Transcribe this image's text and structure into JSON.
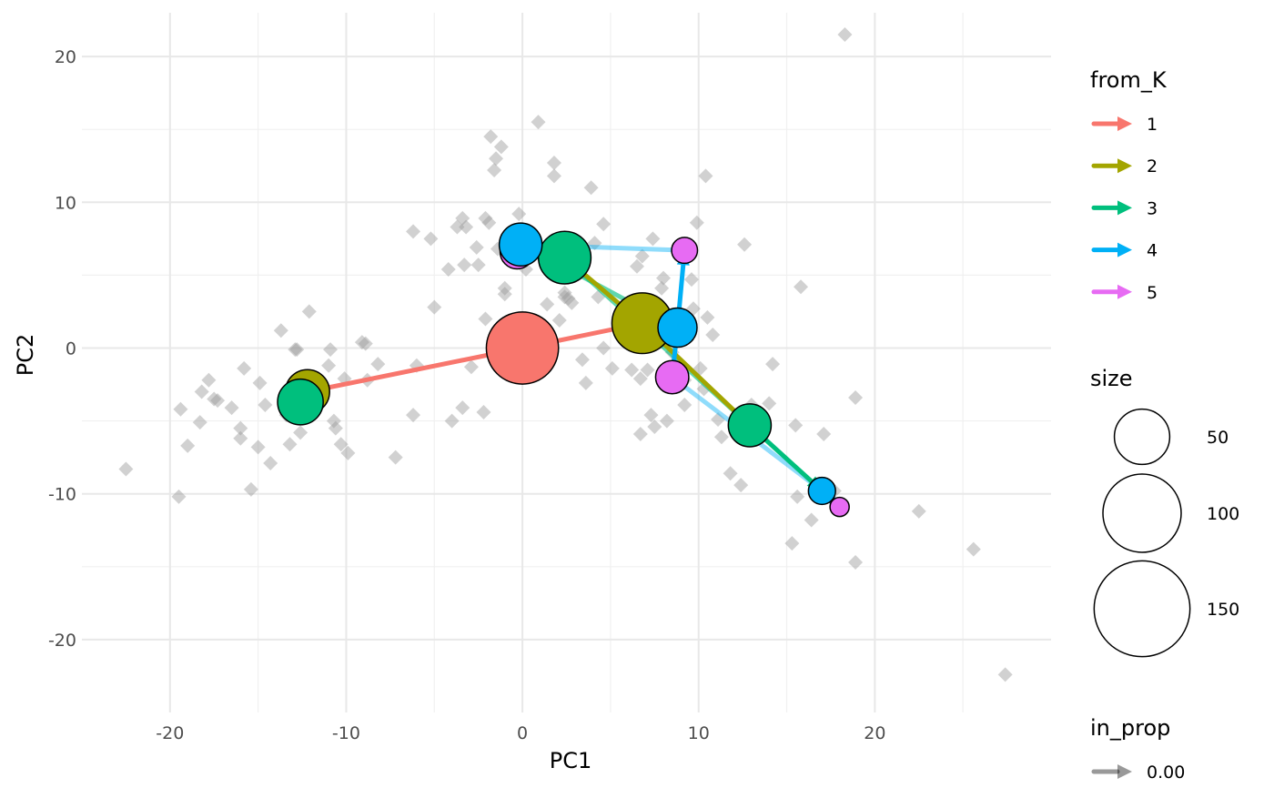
{
  "chart_data": {
    "type": "scatter",
    "xlabel": "PC1",
    "ylabel": "PC2",
    "xlim": [
      -25,
      30
    ],
    "ylim": [
      -25,
      23
    ],
    "x_ticks": [
      -20,
      -10,
      0,
      10,
      20
    ],
    "y_ticks": [
      -20,
      -10,
      0,
      10,
      20
    ],
    "grid": true,
    "background_points": {
      "marker": "diamond",
      "color": "#999999",
      "points": [
        [
          -22.5,
          -8.3
        ],
        [
          -19.5,
          -10.2
        ],
        [
          -19.4,
          -4.2
        ],
        [
          -19,
          -6.7
        ],
        [
          -18.3,
          -5.1
        ],
        [
          -18.2,
          -3
        ],
        [
          -17.8,
          -2.2
        ],
        [
          -17.5,
          -3.5
        ],
        [
          -17.3,
          -3.6
        ],
        [
          -16.5,
          -4.1
        ],
        [
          -16,
          -5.5
        ],
        [
          -16,
          -6.2
        ],
        [
          -15.8,
          -1.4
        ],
        [
          -15.4,
          -9.7
        ],
        [
          -15,
          -6.8
        ],
        [
          -14.9,
          -2.4
        ],
        [
          -14.6,
          -3.9
        ],
        [
          -14.3,
          -7.9
        ],
        [
          -13.7,
          1.2
        ],
        [
          -13.4,
          -4.6
        ],
        [
          -13.2,
          -6.6
        ],
        [
          -12.9,
          -0.1
        ],
        [
          -12.8,
          -0.1
        ],
        [
          -12.6,
          -5.8
        ],
        [
          -12.5,
          -4.3
        ],
        [
          -12.3,
          -3.5
        ],
        [
          -12.1,
          2.5
        ],
        [
          -11.4,
          -2.6
        ],
        [
          -11,
          -1.2
        ],
        [
          -10.9,
          -0.1
        ],
        [
          -10.7,
          -5
        ],
        [
          -10.6,
          -5.5
        ],
        [
          -10.3,
          -6.6
        ],
        [
          -10.1,
          -2.1
        ],
        [
          -9.9,
          -7.2
        ],
        [
          -9.1,
          0.4
        ],
        [
          -8.9,
          0.3
        ],
        [
          -8.8,
          -2.2
        ],
        [
          -8.2,
          -1.1
        ],
        [
          -7.2,
          -7.5
        ],
        [
          -6.2,
          -4.6
        ],
        [
          -6.2,
          8
        ],
        [
          -6,
          -1.2
        ],
        [
          -5.2,
          7.5
        ],
        [
          -5,
          2.8
        ],
        [
          -4.2,
          5.4
        ],
        [
          -4,
          -5
        ],
        [
          -3.7,
          8.3
        ],
        [
          -3.4,
          -4.1
        ],
        [
          -3.4,
          8.9
        ],
        [
          -3.3,
          5.7
        ],
        [
          -3.2,
          8.3
        ],
        [
          -2.9,
          -1.3
        ],
        [
          -2.6,
          6.9
        ],
        [
          -2.5,
          5.7
        ],
        [
          -2.2,
          -4.4
        ],
        [
          -2.1,
          8.9
        ],
        [
          -2.1,
          2
        ],
        [
          -1.9,
          8.6
        ],
        [
          -1.8,
          14.5
        ],
        [
          -1.6,
          12.2
        ],
        [
          -1.5,
          13
        ],
        [
          -1.4,
          6.8
        ],
        [
          -1.2,
          13.8
        ],
        [
          -1,
          4.1
        ],
        [
          -1,
          3.7
        ],
        [
          -0.9,
          -1.6
        ],
        [
          -0.7,
          6.6
        ],
        [
          -0.2,
          9.2
        ],
        [
          0.2,
          5.4
        ],
        [
          0.9,
          15.5
        ],
        [
          1.2,
          6.1
        ],
        [
          1.4,
          3
        ],
        [
          1.8,
          11.8
        ],
        [
          1.8,
          12.7
        ],
        [
          2.1,
          1.9
        ],
        [
          2.3,
          7.3
        ],
        [
          2.4,
          3.5
        ],
        [
          2.4,
          3.8
        ],
        [
          2.6,
          6.7
        ],
        [
          2.6,
          3.4
        ],
        [
          2.8,
          3.1
        ],
        [
          3.4,
          -0.8
        ],
        [
          3.6,
          -2.4
        ],
        [
          3.9,
          11
        ],
        [
          4.1,
          7.2
        ],
        [
          4.3,
          3.5
        ],
        [
          4.6,
          8.5
        ],
        [
          4.6,
          0
        ],
        [
          5.1,
          -1.4
        ],
        [
          6.2,
          -1.5
        ],
        [
          6.5,
          5.6
        ],
        [
          6.7,
          -5.9
        ],
        [
          6.7,
          -2.1
        ],
        [
          6.8,
          6.3
        ],
        [
          7.1,
          -1.5
        ],
        [
          7.3,
          -4.6
        ],
        [
          7.4,
          7.5
        ],
        [
          7.5,
          -5.4
        ],
        [
          7.9,
          4.1
        ],
        [
          8,
          4.8
        ],
        [
          8.2,
          -5
        ],
        [
          8.3,
          -1.7
        ],
        [
          8.5,
          -0.3
        ],
        [
          8.9,
          -1.1
        ],
        [
          9.2,
          -3.9
        ],
        [
          9.2,
          -2.2
        ],
        [
          9.6,
          4.7
        ],
        [
          9.7,
          2.7
        ],
        [
          9.9,
          8.6
        ],
        [
          10.1,
          -1.4
        ],
        [
          10.3,
          -2.8
        ],
        [
          10.4,
          11.8
        ],
        [
          10.5,
          2.1
        ],
        [
          10.8,
          0.9
        ],
        [
          11.1,
          -4.9
        ],
        [
          11.3,
          -6.1
        ],
        [
          11.8,
          -8.6
        ],
        [
          12.4,
          -9.4
        ],
        [
          12.6,
          7.1
        ],
        [
          13,
          -3.9
        ],
        [
          14,
          -3.8
        ],
        [
          14.2,
          -1.1
        ],
        [
          15.3,
          -13.4
        ],
        [
          15.5,
          -5.3
        ],
        [
          15.6,
          -10.2
        ],
        [
          15.8,
          4.2
        ],
        [
          16.4,
          -11.8
        ],
        [
          17.1,
          -5.9
        ],
        [
          17.7,
          -9.8
        ],
        [
          18.3,
          21.5
        ],
        [
          18.9,
          -14.7
        ],
        [
          18.9,
          -3.4
        ],
        [
          22.5,
          -11.2
        ],
        [
          25.6,
          -13.8
        ],
        [
          27.4,
          -22.4
        ]
      ]
    },
    "nodes": [
      {
        "from_K": 1,
        "x": 0,
        "y": 0,
        "size": 85
      },
      {
        "from_K": 2,
        "x": 6.8,
        "y": 1.7,
        "size": 60
      },
      {
        "from_K": 2,
        "x": -12.2,
        "y": -3,
        "size": 32
      },
      {
        "from_K": 3,
        "x": -12.6,
        "y": -3.7,
        "size": 34
      },
      {
        "from_K": 3,
        "x": 2.4,
        "y": 6.2,
        "size": 45
      },
      {
        "from_K": 3,
        "x": 12.9,
        "y": -5.3,
        "size": 30
      },
      {
        "from_K": 5,
        "x": -0.3,
        "y": 6.6,
        "size": 19
      },
      {
        "from_K": 4,
        "x": -0.1,
        "y": 7.1,
        "size": 30
      },
      {
        "from_K": 4,
        "x": 8.8,
        "y": 1.4,
        "size": 25
      },
      {
        "from_K": 4,
        "x": 17,
        "y": -9.8,
        "size": 12
      },
      {
        "from_K": 5,
        "x": 9.2,
        "y": 6.7,
        "size": 11
      },
      {
        "from_K": 5,
        "x": 8.5,
        "y": -2,
        "size": 18
      },
      {
        "from_K": 5,
        "x": 18,
        "y": -10.9,
        "size": 6
      }
    ],
    "edges": [
      {
        "from_K": 4,
        "x1": 9.2,
        "y1": 6.7,
        "x2": -0.1,
        "y2": 7.1,
        "in_prop": 0.25,
        "arrow": false
      },
      {
        "from_K": 4,
        "x1": 8.5,
        "y1": -2,
        "x2": 17,
        "y2": -9.8,
        "in_prop": 0.25,
        "arrow": false
      },
      {
        "from_K": 3,
        "x1": 2.4,
        "y1": 6.2,
        "x2": 12.9,
        "y2": -5.3,
        "in_prop": 0.5,
        "arrow": false
      },
      {
        "from_K": 3,
        "x1": 8.8,
        "y1": 1.4,
        "x2": 0,
        "y2": 7.1,
        "in_prop": 0.5,
        "arrow": true
      },
      {
        "from_K": 1,
        "x1": 0,
        "y1": 0,
        "x2": -12.2,
        "y2": -3,
        "in_prop": 1,
        "arrow": true
      },
      {
        "from_K": 1,
        "x1": 0,
        "y1": 0,
        "x2": 6.8,
        "y2": 1.7,
        "in_prop": 1,
        "arrow": true
      },
      {
        "from_K": 2,
        "x1": 6.8,
        "y1": 1.7,
        "x2": 2.4,
        "y2": 6.2,
        "in_prop": 1,
        "arrow": true
      },
      {
        "from_K": 2,
        "x1": 6.8,
        "y1": 1.7,
        "x2": 12.9,
        "y2": -5.3,
        "in_prop": 1,
        "arrow": true
      },
      {
        "from_K": 3,
        "x1": 12.9,
        "y1": -5.3,
        "x2": 17,
        "y2": -9.8,
        "in_prop": 1,
        "arrow": true
      },
      {
        "from_K": 4,
        "x1": 8.8,
        "y1": 1.4,
        "x2": 9.2,
        "y2": 6.7,
        "in_prop": 1,
        "arrow": true
      },
      {
        "from_K": 4,
        "x1": 8.8,
        "y1": 1.4,
        "x2": 8.5,
        "y2": -2,
        "in_prop": 1,
        "arrow": true
      },
      {
        "from_K": 4,
        "x1": 17,
        "y1": -9.8,
        "x2": 18,
        "y2": -10.9,
        "in_prop": 1,
        "arrow": true
      }
    ],
    "legends": {
      "color": {
        "title": "from_K",
        "entries": [
          {
            "label": "1",
            "color": "#F8766D"
          },
          {
            "label": "2",
            "color": "#A3A500"
          },
          {
            "label": "3",
            "color": "#00BF7D"
          },
          {
            "label": "4",
            "color": "#00B0F6"
          },
          {
            "label": "5",
            "color": "#E76BF3"
          }
        ]
      },
      "size": {
        "title": "size",
        "entries": [
          {
            "label": "50",
            "value": 50
          },
          {
            "label": "100",
            "value": 100
          },
          {
            "label": "150",
            "value": 150
          }
        ]
      },
      "alpha": {
        "title": "in_prop",
        "entries": [
          {
            "label": "0.00",
            "value": 0
          }
        ]
      }
    },
    "legend_placement": "right"
  }
}
